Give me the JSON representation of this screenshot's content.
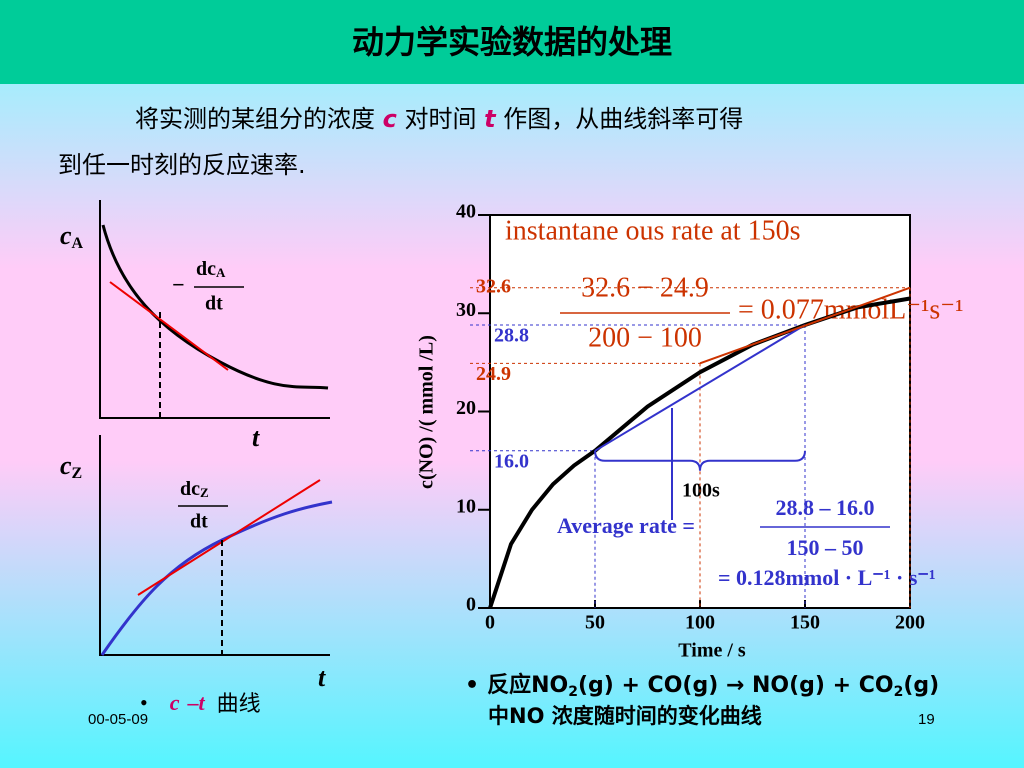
{
  "header": {
    "title": "动力学实验数据的处理"
  },
  "intro": {
    "line1": [
      "将实测的某组分的浓度 ",
      "c",
      " 对时间 ",
      "t",
      " 作图，从曲线斜率可得"
    ],
    "line2": "到任一时刻的反应速率."
  },
  "sketch_a": {
    "y_label": "c",
    "y_sub": "A",
    "rate_sign": "−",
    "rate_num": "dc",
    "rate_sub": "A",
    "rate_den": "dt",
    "x_label": "t"
  },
  "sketch_z": {
    "y_label": "c",
    "y_sub": "Z",
    "rate_num": "dc",
    "rate_sub": "Z",
    "rate_den": "dt",
    "x_label": "t"
  },
  "chart_data": {
    "type": "line",
    "x": [
      0,
      10,
      20,
      30,
      40,
      50,
      75,
      100,
      125,
      150,
      175,
      200
    ],
    "values": [
      0,
      6.5,
      10,
      12.6,
      14.5,
      16,
      20.5,
      24,
      26.8,
      28.8,
      30.6,
      31.5
    ],
    "color": "#000000",
    "x_label": "Time / s",
    "y_label": "c(NO) /( mmol /L)",
    "xlim": [
      0,
      200
    ],
    "ylim": [
      0,
      40
    ],
    "xticks": [
      0,
      50,
      100,
      150,
      200
    ],
    "yticks": [
      0,
      10,
      20,
      30,
      40
    ],
    "guides": [
      {
        "x": 50,
        "y": {
          "value": 16,
          "label": "16.0"
        },
        "color": "#3333cc"
      },
      {
        "x": 150,
        "y": 28.8,
        "color": "#3333cc"
      },
      {
        "x": 100,
        "y": 24.9,
        "color": "#cc3300"
      },
      {
        "x": 200,
        "y": 32.6,
        "color": "#cc3300"
      }
    ],
    "instant": {
      "title": "instantane ous rate at 150s",
      "num": "32.6 − 24.9",
      "den": "200 − 100",
      "result": "= 0.077mmolL⁻¹s⁻¹"
    },
    "average": {
      "lhs": "Average  rate =",
      "num": "28.8 – 16.0",
      "den": "150 – 50",
      "result": "= 0.128mmol · L⁻¹ · s⁻¹"
    },
    "brace_label": "100s"
  },
  "caption": {
    "bullet": "•",
    "line1": [
      "反应NO",
      "2",
      "(g) + CO(g) → NO(g) + CO",
      "2",
      "(g)"
    ],
    "line2": "中NO 浓度随时间的变化曲线"
  },
  "footer": {
    "date": "00-05-09",
    "page": 19,
    "bullet": "•",
    "c": "c",
    "dash": "–",
    "t": "t",
    "text": "曲线"
  }
}
